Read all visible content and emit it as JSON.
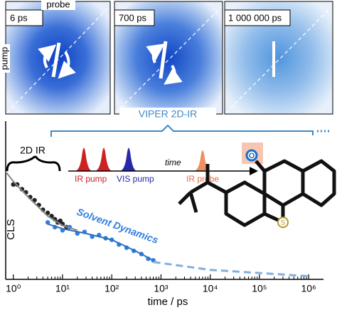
{
  "panels": [
    {
      "label": "6 ps"
    },
    {
      "label": "700 ps"
    },
    {
      "label": "1 000 000 ps"
    }
  ],
  "probe_label": "probe",
  "pump_label": "pump",
  "pulse_sequence": {
    "ir_pump": "IR pump",
    "vis_pump": "VIS pump",
    "time": "time",
    "ir_probe": "IR probe"
  },
  "molecule": {
    "oxygen": "O",
    "sulfur": "S"
  },
  "chart_data": {
    "type": "scatter",
    "xlabel": "time / ps",
    "ylabel": "CLS",
    "xlog": true,
    "xlim": [
      0.7,
      2000000
    ],
    "ylim": [
      0,
      1
    ],
    "xticks": [
      {
        "value": 1,
        "label": "10⁰"
      },
      {
        "value": 10,
        "label": "10¹"
      },
      {
        "value": 100,
        "label": "10²"
      },
      {
        "value": 1000,
        "label": "10³"
      },
      {
        "value": 10000,
        "label": "10⁴"
      },
      {
        "value": 100000,
        "label": "10⁵"
      },
      {
        "value": 1000000,
        "label": "10⁶"
      }
    ],
    "annotation": "Solvent Dynamics",
    "series": [
      {
        "name": "2D IR",
        "color": "#222222",
        "style": "markers",
        "x": [
          1,
          1.2,
          1.5,
          1.8,
          2.2,
          2.7,
          3.3,
          4,
          5,
          6,
          7,
          8,
          9,
          10,
          12
        ],
        "values": [
          0.6,
          0.6,
          0.57,
          0.55,
          0.52,
          0.5,
          0.47,
          0.44,
          0.42,
          0.4,
          0.38,
          0.36,
          0.37,
          0.35,
          0.33
        ]
      },
      {
        "name": "VIPER 2D-IR",
        "color": "#2f7fe0",
        "style": "markers",
        "x": [
          5,
          7,
          10,
          14,
          20,
          28,
          40,
          55,
          75,
          100,
          140,
          200,
          280,
          400,
          550,
          700
        ],
        "values": [
          0.36,
          0.33,
          0.31,
          0.33,
          0.29,
          0.3,
          0.27,
          0.28,
          0.26,
          0.25,
          0.22,
          0.2,
          0.18,
          0.16,
          0.13,
          0.12
        ]
      },
      {
        "color": "#888888",
        "style": "line",
        "x": [
          0.7,
          1,
          2,
          5,
          10,
          20
        ],
        "values": [
          0.68,
          0.62,
          0.52,
          0.4,
          0.34,
          0.31
        ]
      },
      {
        "color": "#2f6fc0",
        "style": "line",
        "x": [
          5,
          10,
          30,
          100,
          300,
          700
        ],
        "values": [
          0.35,
          0.32,
          0.29,
          0.25,
          0.18,
          0.12
        ]
      },
      {
        "color": "#7fb0dd",
        "style": "dashed",
        "x": [
          700,
          10000,
          100000,
          1000000
        ],
        "values": [
          0.11,
          0.06,
          0.04,
          0.02
        ]
      }
    ]
  }
}
